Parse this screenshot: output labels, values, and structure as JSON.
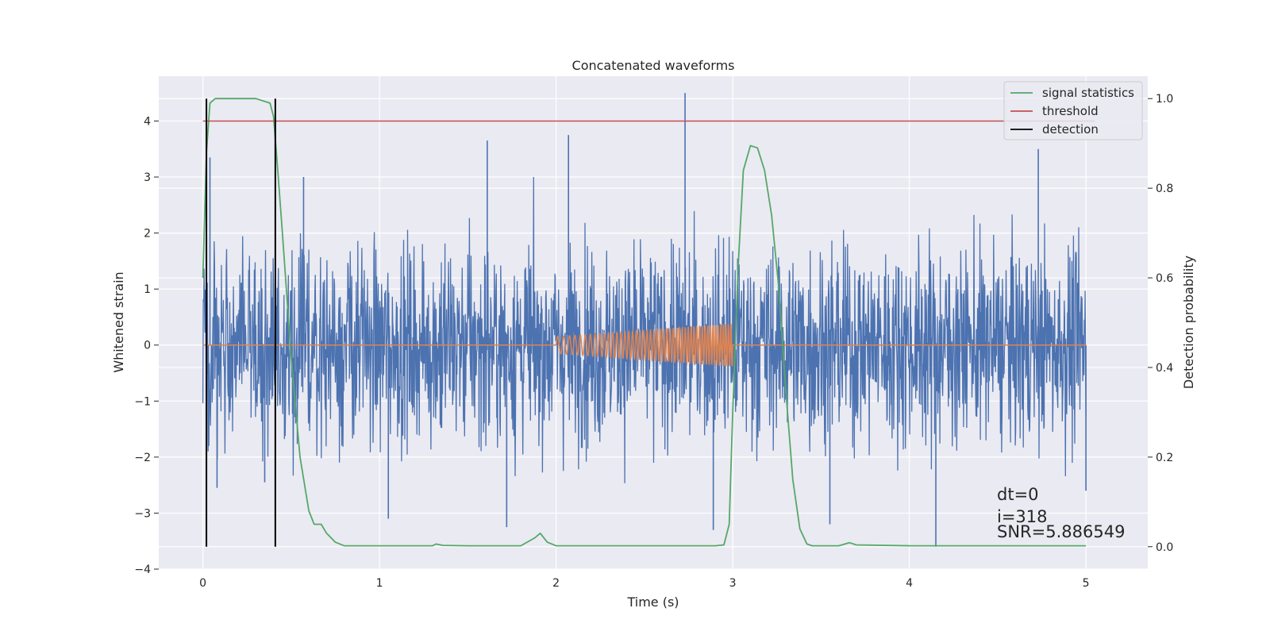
{
  "chart_data": {
    "type": "line",
    "title": "Concatenated waveforms",
    "xlabel": "Time (s)",
    "ylabel": "Whitened strain",
    "y2label": "Detection probability",
    "xlim": [
      -0.25,
      5.35
    ],
    "ylim": [
      -4,
      4.8
    ],
    "y2lim": [
      -0.05,
      1.05
    ],
    "xticks": [
      0,
      1,
      2,
      3,
      4,
      5
    ],
    "yticks": [
      -4,
      -3,
      -2,
      -1,
      0,
      1,
      2,
      3,
      4
    ],
    "y2ticks": [
      0.0,
      0.2,
      0.4,
      0.6,
      0.8,
      1.0
    ],
    "xtick_labels": [
      "0",
      "1",
      "2",
      "3",
      "4",
      "5"
    ],
    "ytick_labels": [
      "−4",
      "−3",
      "−2",
      "−1",
      "0",
      "1",
      "2",
      "3",
      "4"
    ],
    "y2tick_labels": [
      "0.0",
      "0.2",
      "0.4",
      "0.6",
      "0.8",
      "1.0"
    ],
    "grid": true,
    "legend_position": "top-right",
    "legend": [
      "signal statistics",
      "threshold",
      "detection"
    ],
    "annotations": [
      "dt=0",
      "i=318",
      "SNR=5.886549"
    ],
    "series": [
      {
        "kind": "noise",
        "color": "#4c72b0",
        "x_range": [
          0,
          5
        ],
        "typical_amplitude": 1.3,
        "peaks": [
          {
            "x": 0.04,
            "y": 3.35
          },
          {
            "x": 0.57,
            "y": 3.0
          },
          {
            "x": 1.61,
            "y": 3.65
          },
          {
            "x": 2.07,
            "y": 3.75
          },
          {
            "x": 2.73,
            "y": 4.5
          },
          {
            "x": 4.73,
            "y": 3.5
          },
          {
            "x": 1.05,
            "y": -3.1
          },
          {
            "x": 1.72,
            "y": -3.25
          },
          {
            "x": 2.89,
            "y": -3.3
          },
          {
            "x": 4.15,
            "y": -3.6
          },
          {
            "x": 3.55,
            "y": -3.2
          },
          {
            "x": 0.08,
            "y": -2.55
          },
          {
            "x": 0.35,
            "y": -2.45
          },
          {
            "x": 5.0,
            "y": -2.6
          }
        ]
      },
      {
        "kind": "chirp",
        "color": "#dd8452",
        "x_range": [
          0,
          5
        ],
        "chirp_start": 2.0,
        "chirp_end": 3.0,
        "amplitude_start": 0.15,
        "amplitude_end": 0.38
      },
      {
        "name": "signal statistics",
        "axis": "right",
        "color": "#55a868",
        "x": [
          0,
          0.02,
          0.04,
          0.07,
          0.1,
          0.2,
          0.3,
          0.38,
          0.4,
          0.42,
          0.45,
          0.5,
          0.55,
          0.6,
          0.63,
          0.67,
          0.7,
          0.75,
          0.8,
          1.0,
          1.3,
          1.32,
          1.36,
          1.5,
          1.8,
          1.88,
          1.91,
          1.95,
          2.0,
          2.5,
          2.9,
          2.95,
          2.98,
          3.0,
          3.03,
          3.06,
          3.1,
          3.14,
          3.18,
          3.22,
          3.26,
          3.3,
          3.34,
          3.38,
          3.42,
          3.45,
          3.6,
          3.66,
          3.7,
          4.0,
          4.5,
          5.0
        ],
        "y": [
          0.6,
          0.88,
          0.99,
          1.0,
          1.0,
          1.0,
          1.0,
          0.99,
          0.96,
          0.86,
          0.7,
          0.42,
          0.2,
          0.08,
          0.05,
          0.05,
          0.03,
          0.01,
          0.002,
          0.002,
          0.002,
          0.006,
          0.003,
          0.002,
          0.002,
          0.02,
          0.03,
          0.01,
          0.002,
          0.002,
          0.002,
          0.004,
          0.05,
          0.3,
          0.62,
          0.84,
          0.895,
          0.89,
          0.84,
          0.74,
          0.58,
          0.35,
          0.15,
          0.04,
          0.006,
          0.002,
          0.002,
          0.009,
          0.004,
          0.002,
          0.002,
          0.002
        ]
      },
      {
        "name": "threshold",
        "axis": "right",
        "color": "#c44e52",
        "x": [
          0,
          5.05
        ],
        "y": [
          0.95,
          0.95
        ]
      },
      {
        "name": "detection",
        "axis": "right",
        "color": "#000000",
        "kind": "vlines",
        "x": [
          0.02,
          0.41
        ],
        "y_range": [
          0.0,
          1.0
        ]
      }
    ]
  }
}
